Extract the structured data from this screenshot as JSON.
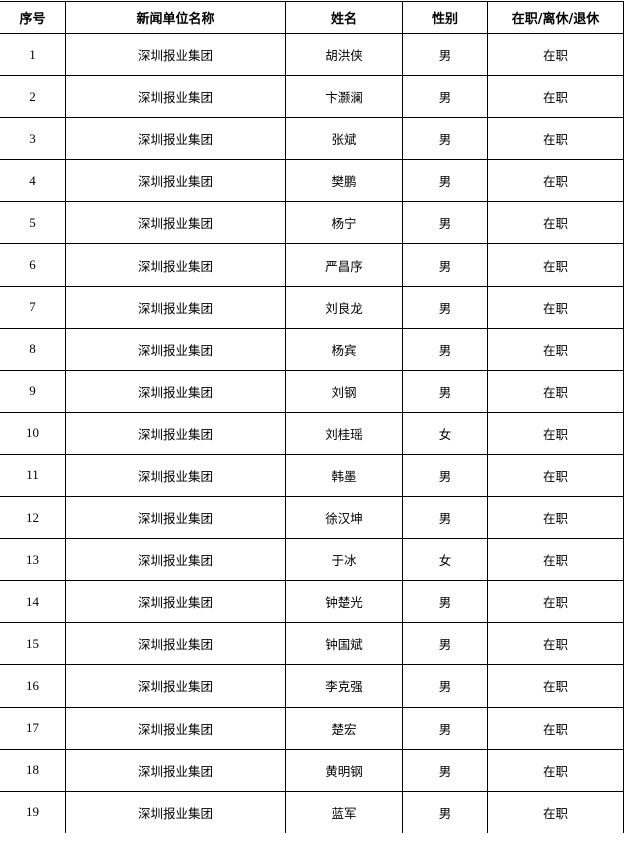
{
  "table": {
    "headers": [
      "序号",
      "新闻单位名称",
      "姓名",
      "性别",
      "在职/离休/退休"
    ],
    "rows": [
      [
        "1",
        "深圳报业集团",
        "胡洪侠",
        "男",
        "在职"
      ],
      [
        "2",
        "深圳报业集团",
        "卞灏澜",
        "男",
        "在职"
      ],
      [
        "3",
        "深圳报业集团",
        "张斌",
        "男",
        "在职"
      ],
      [
        "4",
        "深圳报业集团",
        "樊鹏",
        "男",
        "在职"
      ],
      [
        "5",
        "深圳报业集团",
        "杨宁",
        "男",
        "在职"
      ],
      [
        "6",
        "深圳报业集团",
        "严昌序",
        "男",
        "在职"
      ],
      [
        "7",
        "深圳报业集团",
        "刘良龙",
        "男",
        "在职"
      ],
      [
        "8",
        "深圳报业集团",
        "杨宾",
        "男",
        "在职"
      ],
      [
        "9",
        "深圳报业集团",
        "刘钢",
        "男",
        "在职"
      ],
      [
        "10",
        "深圳报业集团",
        "刘桂瑶",
        "女",
        "在职"
      ],
      [
        "11",
        "深圳报业集团",
        "韩墨",
        "男",
        "在职"
      ],
      [
        "12",
        "深圳报业集团",
        "徐汉坤",
        "男",
        "在职"
      ],
      [
        "13",
        "深圳报业集团",
        "于冰",
        "女",
        "在职"
      ],
      [
        "14",
        "深圳报业集团",
        "钟楚光",
        "男",
        "在职"
      ],
      [
        "15",
        "深圳报业集团",
        "钟国斌",
        "男",
        "在职"
      ],
      [
        "16",
        "深圳报业集团",
        "李克强",
        "男",
        "在职"
      ],
      [
        "17",
        "深圳报业集团",
        "楚宏",
        "男",
        "在职"
      ],
      [
        "18",
        "深圳报业集团",
        "黄明钢",
        "男",
        "在职"
      ],
      [
        "19",
        "深圳报业集团",
        "蓝军",
        "男",
        "在职"
      ]
    ]
  }
}
